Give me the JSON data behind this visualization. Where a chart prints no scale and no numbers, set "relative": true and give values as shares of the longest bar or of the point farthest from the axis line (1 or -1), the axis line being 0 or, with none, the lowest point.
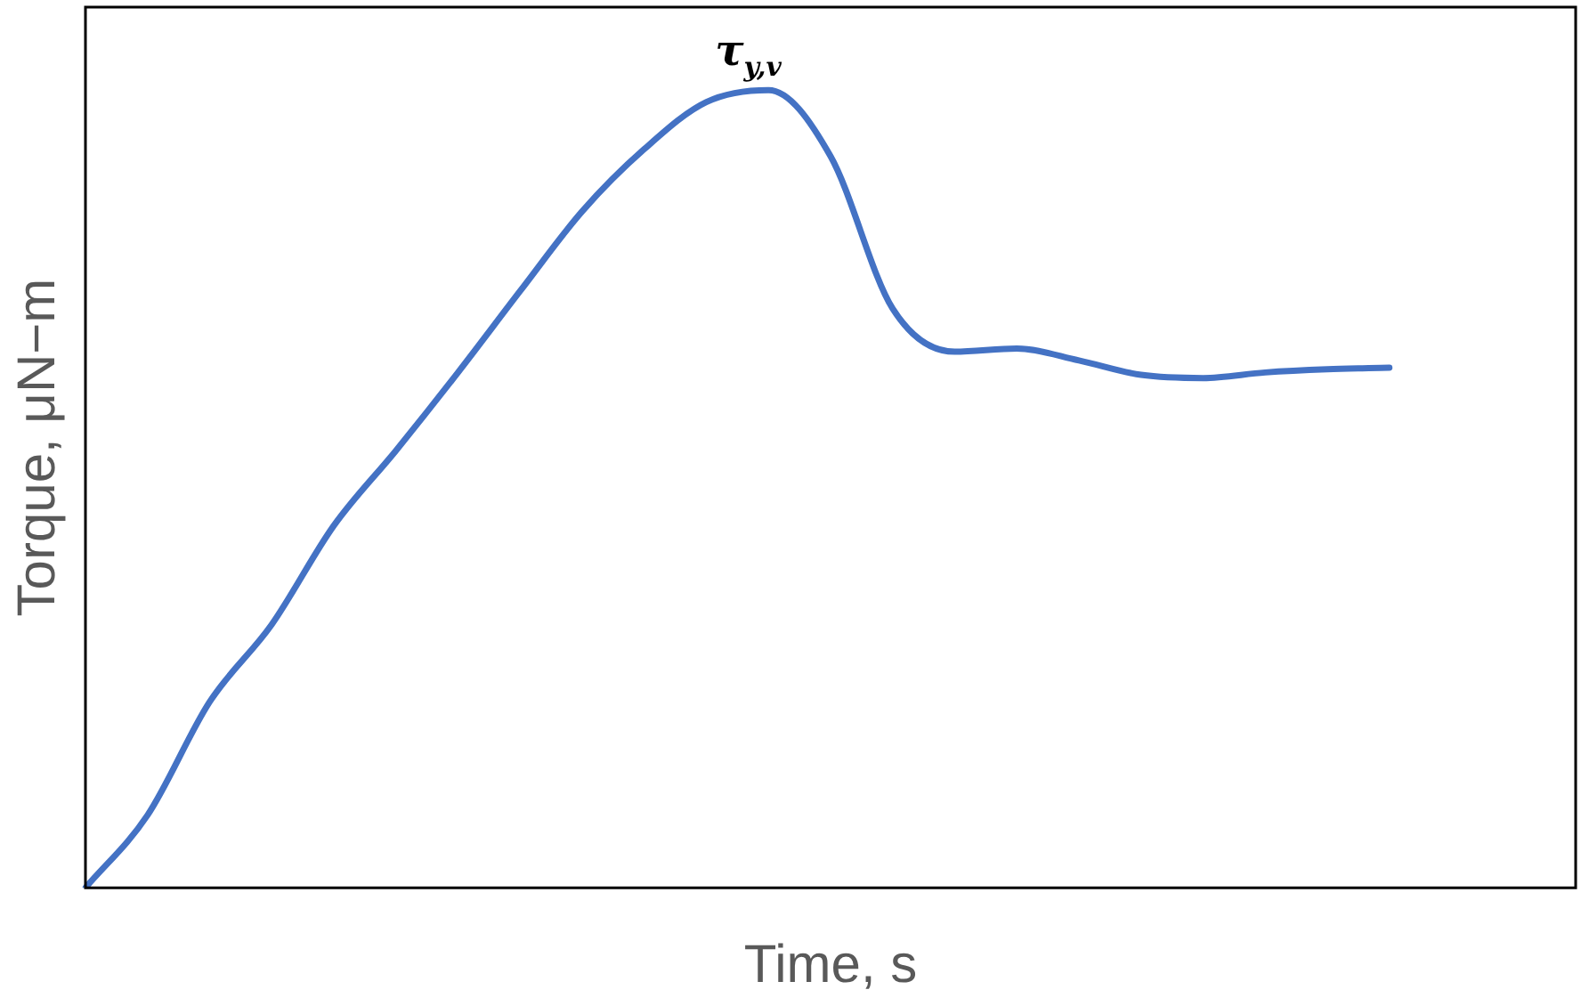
{
  "chart_data": {
    "type": "line",
    "relative": true,
    "xlabel": "Time, s",
    "ylabel": "Torque, μN−m",
    "categories": [
      null,
      null,
      null,
      null,
      null,
      null,
      null,
      null,
      null,
      null,
      null,
      null,
      null,
      null,
      null,
      null,
      null,
      null,
      null,
      null,
      null,
      null,
      null,
      null,
      null
    ],
    "series": [
      {
        "color": "#4472c4",
        "values": [
          0,
          0.091,
          0.233,
          0.33,
          0.454,
          0.548,
          0.646,
          0.748,
          0.848,
          0.926,
          0.985,
          1,
          0.917,
          0.726,
          0.672,
          0.676,
          0.661,
          0.643,
          0.639,
          0.646,
          0.65,
          0.652,
          null,
          null,
          null
        ]
      }
    ],
    "annotations": [
      {
        "text": "τ$_{y,v}$",
        "y": 1
      }
    ],
    "grid": false,
    "legend": false,
    "marker": "none",
    "line_style": "solid"
  }
}
